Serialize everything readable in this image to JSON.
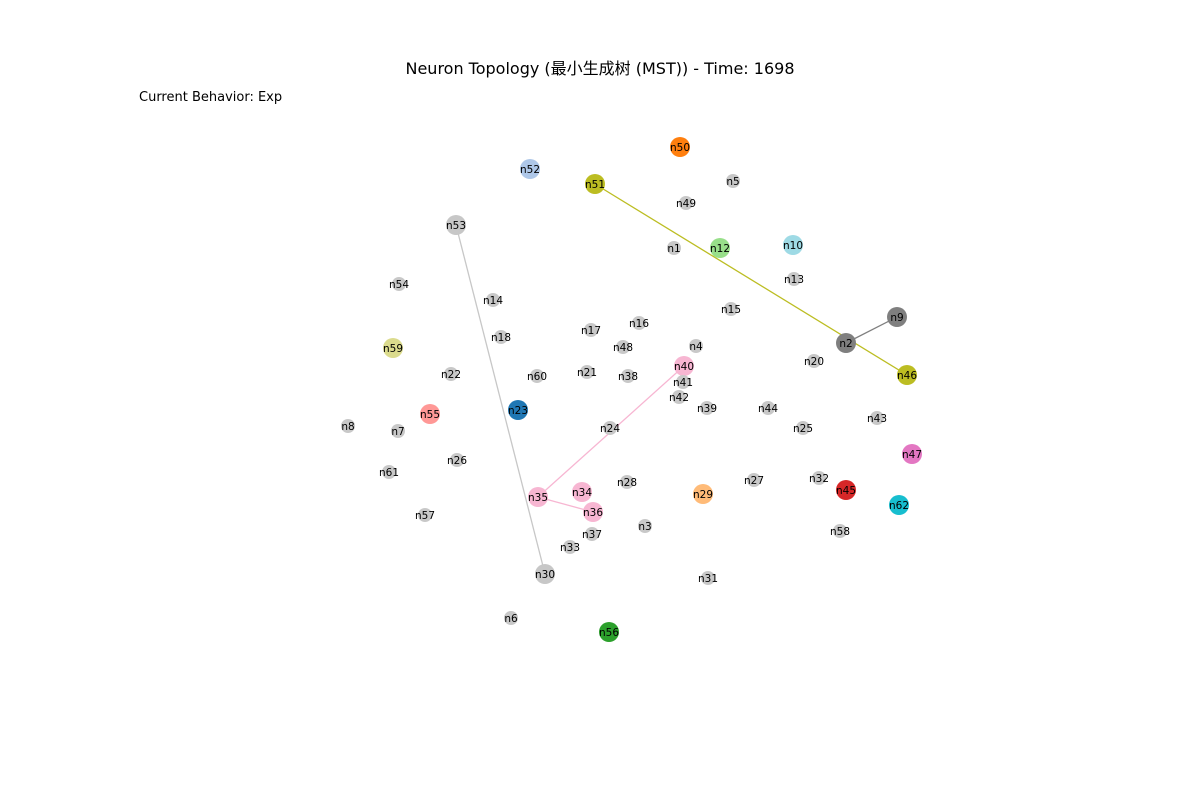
{
  "header": {
    "title": "Neuron Topology (最小生成树 (MST)) - Time: 1698",
    "behavior": "Current Behavior: Exp"
  },
  "nodes": [
    {
      "id": "n1",
      "color": "#c8c8c8",
      "big": false
    },
    {
      "id": "n2",
      "color": "#7f7f7f",
      "big": true
    },
    {
      "id": "n3",
      "color": "#c8c8c8",
      "big": false
    },
    {
      "id": "n4",
      "color": "#c8c8c8",
      "big": false
    },
    {
      "id": "n5",
      "color": "#c8c8c8",
      "big": false
    },
    {
      "id": "n6",
      "color": "#c8c8c8",
      "big": false
    },
    {
      "id": "n7",
      "color": "#c8c8c8",
      "big": false
    },
    {
      "id": "n8",
      "color": "#c8c8c8",
      "big": false
    },
    {
      "id": "n9",
      "color": "#7f7f7f",
      "big": true
    },
    {
      "id": "n10",
      "color": "#9edae5",
      "big": true
    },
    {
      "id": "n12",
      "color": "#98df8a",
      "big": true
    },
    {
      "id": "n13",
      "color": "#c8c8c8",
      "big": false
    },
    {
      "id": "n14",
      "color": "#c8c8c8",
      "big": false
    },
    {
      "id": "n15",
      "color": "#c8c8c8",
      "big": false
    },
    {
      "id": "n16",
      "color": "#c8c8c8",
      "big": false
    },
    {
      "id": "n17",
      "color": "#c8c8c8",
      "big": false
    },
    {
      "id": "n18",
      "color": "#c8c8c8",
      "big": false
    },
    {
      "id": "n20",
      "color": "#c8c8c8",
      "big": false
    },
    {
      "id": "n21",
      "color": "#c8c8c8",
      "big": false
    },
    {
      "id": "n22",
      "color": "#c8c8c8",
      "big": false
    },
    {
      "id": "n23",
      "color": "#1f77b4",
      "big": true
    },
    {
      "id": "n24",
      "color": "#c8c8c8",
      "big": false
    },
    {
      "id": "n25",
      "color": "#c8c8c8",
      "big": false
    },
    {
      "id": "n26",
      "color": "#c8c8c8",
      "big": false
    },
    {
      "id": "n27",
      "color": "#c8c8c8",
      "big": false
    },
    {
      "id": "n28",
      "color": "#c8c8c8",
      "big": false
    },
    {
      "id": "n29",
      "color": "#ffbb78",
      "big": true
    },
    {
      "id": "n30",
      "color": "#c7c7c7",
      "big": true
    },
    {
      "id": "n31",
      "color": "#c8c8c8",
      "big": false
    },
    {
      "id": "n32",
      "color": "#c8c8c8",
      "big": false
    },
    {
      "id": "n33",
      "color": "#c8c8c8",
      "big": false
    },
    {
      "id": "n34",
      "color": "#f7b6d2",
      "big": true
    },
    {
      "id": "n35",
      "color": "#f7b6d2",
      "big": true
    },
    {
      "id": "n36",
      "color": "#f7b6d2",
      "big": true
    },
    {
      "id": "n37",
      "color": "#c8c8c8",
      "big": false
    },
    {
      "id": "n38",
      "color": "#c8c8c8",
      "big": false
    },
    {
      "id": "n39",
      "color": "#c8c8c8",
      "big": false
    },
    {
      "id": "n40",
      "color": "#f7b6d2",
      "big": true
    },
    {
      "id": "n41",
      "color": "#c8c8c8",
      "big": false
    },
    {
      "id": "n42",
      "color": "#c8c8c8",
      "big": false
    },
    {
      "id": "n43",
      "color": "#c8c8c8",
      "big": false
    },
    {
      "id": "n44",
      "color": "#c8c8c8",
      "big": false
    },
    {
      "id": "n45",
      "color": "#d62728",
      "big": true
    },
    {
      "id": "n46",
      "color": "#bcbd22",
      "big": true
    },
    {
      "id": "n47",
      "color": "#e377c2",
      "big": true
    },
    {
      "id": "n48",
      "color": "#c8c8c8",
      "big": false
    },
    {
      "id": "n49",
      "color": "#c8c8c8",
      "big": false
    },
    {
      "id": "n50",
      "color": "#ff7f0e",
      "big": true
    },
    {
      "id": "n51",
      "color": "#bcbd22",
      "big": true
    },
    {
      "id": "n52",
      "color": "#aec7e8",
      "big": true
    },
    {
      "id": "n53",
      "color": "#c7c7c7",
      "big": true
    },
    {
      "id": "n54",
      "color": "#c8c8c8",
      "big": false
    },
    {
      "id": "n55",
      "color": "#ff9896",
      "big": true
    },
    {
      "id": "n56",
      "color": "#2ca02c",
      "big": true
    },
    {
      "id": "n57",
      "color": "#c8c8c8",
      "big": false
    },
    {
      "id": "n58",
      "color": "#c8c8c8",
      "big": false
    },
    {
      "id": "n59",
      "color": "#dbdb8d",
      "big": true
    },
    {
      "id": "n60",
      "color": "#c8c8c8",
      "big": false
    },
    {
      "id": "n61",
      "color": "#c8c8c8",
      "big": false
    },
    {
      "id": "n62",
      "color": "#17becf",
      "big": true
    }
  ],
  "edges": [
    {
      "from": "n51",
      "to": "n46",
      "color": "#bcbd22"
    },
    {
      "from": "n2",
      "to": "n9",
      "color": "#7f7f7f"
    },
    {
      "from": "n53",
      "to": "n30",
      "color": "#c7c7c7"
    },
    {
      "from": "n40",
      "to": "n35",
      "color": "#f7b6d2"
    },
    {
      "from": "n35",
      "to": "n36",
      "color": "#f7b6d2"
    }
  ]
}
